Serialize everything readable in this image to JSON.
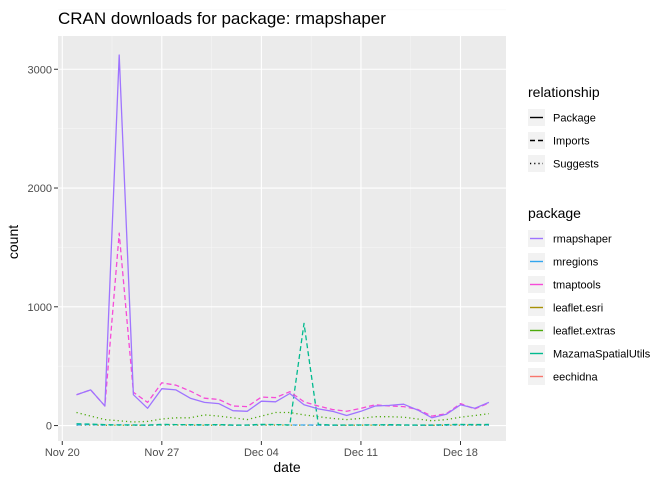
{
  "chart_data": {
    "type": "line",
    "title": "CRAN downloads for package: rmapshaper",
    "xlabel": "date",
    "ylabel": "count",
    "x_tick_labels": [
      "Nov 20",
      "Nov 27",
      "Dec 04",
      "Dec 11",
      "Dec 18"
    ],
    "x_tick_days": [
      0,
      7,
      14,
      21,
      28
    ],
    "y_ticks": [
      0,
      1000,
      2000,
      3000
    ],
    "xlim_days": [
      -0.3,
      31.2
    ],
    "ylim": [
      -130,
      3280
    ],
    "grid": true,
    "legend_placement": "right",
    "relationship_legend": {
      "title": "relationship",
      "items": [
        {
          "label": "Package",
          "dash": "solid"
        },
        {
          "label": "Imports",
          "dash": "dashed"
        },
        {
          "label": "Suggests",
          "dash": "dotted"
        }
      ]
    },
    "package_legend": {
      "title": "package",
      "items": [
        {
          "label": "rmapshaper",
          "color": "#9F74FF"
        },
        {
          "label": "mregions",
          "color": "#33A6EE"
        },
        {
          "label": "tmaptools",
          "color": "#F64BD8"
        },
        {
          "label": "leaflet.esri",
          "color": "#A79106"
        },
        {
          "label": "leaflet.extras",
          "color": "#4DAA0B"
        },
        {
          "label": "MazamaSpatialUtils",
          "color": "#00BA8E"
        },
        {
          "label": "eechidna",
          "color": "#F8766D"
        }
      ]
    },
    "x_dates": [
      "2016-11-21",
      "2016-11-22",
      "2016-11-23",
      "2016-11-24",
      "2016-11-25",
      "2016-11-26",
      "2016-11-27",
      "2016-11-28",
      "2016-11-29",
      "2016-11-30",
      "2016-12-01",
      "2016-12-02",
      "2016-12-03",
      "2016-12-04",
      "2016-12-05",
      "2016-12-06",
      "2016-12-07",
      "2016-12-08",
      "2016-12-09",
      "2016-12-10",
      "2016-12-11",
      "2016-12-12",
      "2016-12-13",
      "2016-12-14",
      "2016-12-15",
      "2016-12-16",
      "2016-12-17",
      "2016-12-18",
      "2016-12-19",
      "2016-12-20"
    ],
    "series": [
      {
        "name": "rmapshaper",
        "relationship": "Package",
        "color": "#9F74FF",
        "dash": "solid",
        "values": [
          260,
          300,
          165,
          3120,
          260,
          145,
          310,
          300,
          230,
          195,
          185,
          125,
          120,
          205,
          200,
          270,
          175,
          140,
          120,
          85,
          120,
          165,
          170,
          180,
          130,
          65,
          95,
          175,
          145,
          195
        ]
      },
      {
        "name": "tmaptools",
        "relationship": "Imports",
        "color": "#F64BD8",
        "dash": "dashed",
        "values": [
          260,
          300,
          165,
          1620,
          280,
          195,
          360,
          340,
          290,
          230,
          220,
          165,
          160,
          240,
          235,
          285,
          200,
          165,
          135,
          120,
          145,
          175,
          165,
          160,
          135,
          80,
          100,
          185,
          140,
          190
        ]
      },
      {
        "name": "MazamaSpatialUtils",
        "relationship": "Imports",
        "color": "#00BA8E",
        "dash": "dashed",
        "values": [
          15,
          12,
          8,
          5,
          5,
          5,
          10,
          8,
          8,
          6,
          8,
          5,
          5,
          10,
          8,
          5,
          860,
          10,
          5,
          5,
          5,
          5,
          8,
          5,
          5,
          5,
          8,
          10,
          8,
          10
        ]
      },
      {
        "name": "leaflet.extras",
        "relationship": "Suggests",
        "color": "#4DAA0B",
        "dash": "dotted",
        "values": [
          110,
          80,
          50,
          40,
          30,
          35,
          55,
          65,
          65,
          90,
          80,
          65,
          50,
          80,
          110,
          110,
          90,
          75,
          60,
          50,
          60,
          75,
          75,
          70,
          55,
          40,
          50,
          70,
          85,
          100
        ]
      },
      {
        "name": "mregions",
        "relationship": "Imports",
        "color": "#33A6EE",
        "dash": "dashed",
        "values": [
          5,
          8,
          4,
          6,
          5,
          3,
          6,
          8,
          5,
          4,
          6,
          3,
          4,
          6,
          8,
          5,
          5,
          4,
          3,
          4,
          5,
          6,
          4,
          5,
          3,
          3,
          4,
          6,
          5,
          5
        ]
      },
      {
        "name": "leaflet.esri",
        "relationship": "Suggests",
        "color": "#A79106",
        "dash": "dotted",
        "values": [
          3,
          4,
          2,
          3,
          2,
          2,
          3,
          4,
          3,
          2,
          3,
          2,
          2,
          3,
          4,
          3,
          3,
          2,
          2,
          2,
          3,
          3,
          2,
          3,
          2,
          2,
          2,
          3,
          3,
          3
        ]
      }
    ]
  }
}
